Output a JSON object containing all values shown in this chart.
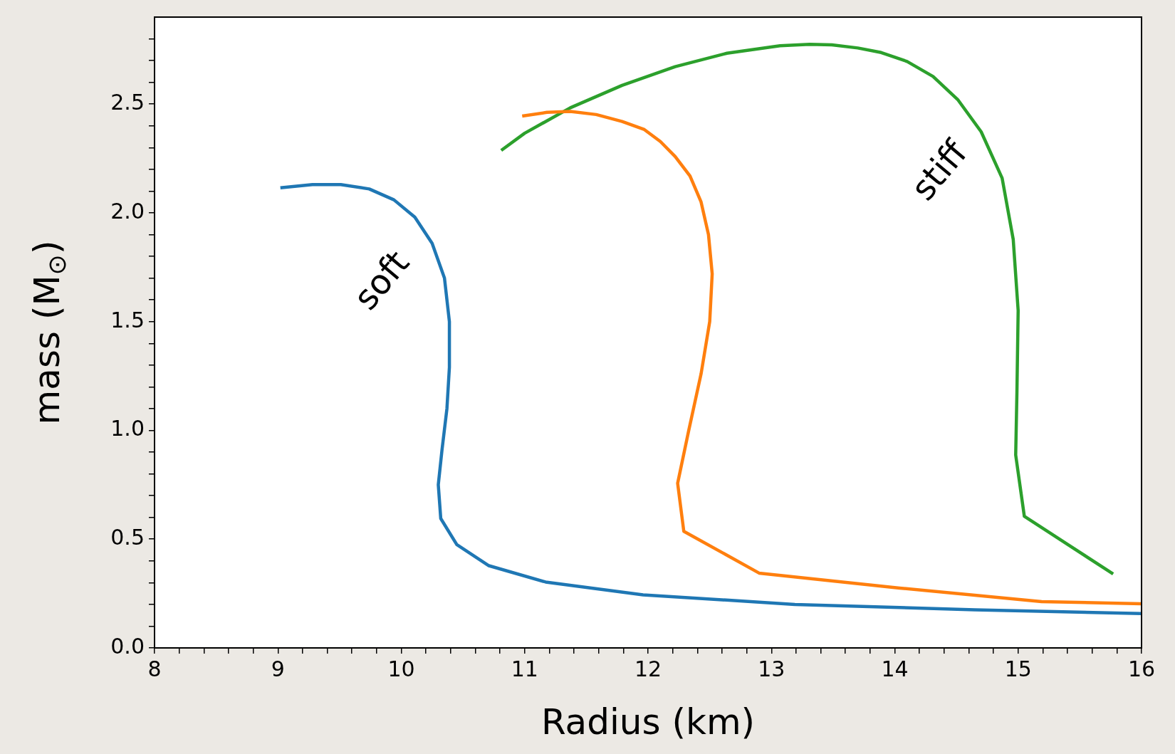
{
  "chart_data": {
    "type": "line",
    "xlabel": "Radius (km)",
    "ylabel": "mass (M$_{⊙}$)",
    "xlim": [
      8,
      16
    ],
    "ylim": [
      0,
      2.9
    ],
    "xticks": [
      8,
      {
        "value": 8.2,
        "label": null
      },
      {
        "value": 8.4,
        "label": null
      },
      {
        "value": 8.6,
        "label": null
      },
      {
        "value": 8.8,
        "label": null
      },
      9,
      {
        "value": 9.2,
        "label": null
      },
      {
        "value": 9.4,
        "label": null
      },
      {
        "value": 9.6,
        "label": null
      },
      {
        "value": 9.8,
        "label": null
      },
      10,
      {
        "value": 10.2,
        "label": null
      },
      {
        "value": 10.4,
        "label": null
      },
      {
        "value": 10.6,
        "label": null
      },
      {
        "value": 10.8,
        "label": null
      },
      11,
      {
        "value": 11.2,
        "label": null
      },
      {
        "value": 11.4,
        "label": null
      },
      {
        "value": 11.6,
        "label": null
      },
      {
        "value": 11.8,
        "label": null
      },
      12,
      {
        "value": 12.2,
        "label": null
      },
      {
        "value": 12.4,
        "label": null
      },
      {
        "value": 12.6,
        "label": null
      },
      {
        "value": 12.8,
        "label": null
      },
      13,
      {
        "value": 13.2,
        "label": null
      },
      {
        "value": 13.4,
        "label": null
      },
      {
        "value": 13.6,
        "label": null
      },
      {
        "value": 13.8,
        "label": null
      },
      14,
      {
        "value": 14.2,
        "label": null
      },
      {
        "value": 14.4,
        "label": null
      },
      {
        "value": 14.6,
        "label": null
      },
      {
        "value": 14.8,
        "label": null
      },
      15,
      {
        "value": 15.2,
        "label": null
      },
      {
        "value": 15.4,
        "label": null
      },
      {
        "value": 15.6,
        "label": null
      },
      {
        "value": 15.8,
        "label": null
      },
      16
    ],
    "yticks": [
      {
        "value": 0,
        "label": "0.0"
      },
      {
        "value": 0.1,
        "label": null
      },
      {
        "value": 0.2,
        "label": null
      },
      {
        "value": 0.3,
        "label": null
      },
      {
        "value": 0.4,
        "label": null
      },
      {
        "value": 0.5,
        "label": "0.5"
      },
      {
        "value": 0.6,
        "label": null
      },
      {
        "value": 0.7,
        "label": null
      },
      {
        "value": 0.8,
        "label": null
      },
      {
        "value": 0.9,
        "label": null
      },
      {
        "value": 1,
        "label": "1.0"
      },
      {
        "value": 1.1,
        "label": null
      },
      {
        "value": 1.2,
        "label": null
      },
      {
        "value": 1.3,
        "label": null
      },
      {
        "value": 1.4,
        "label": null
      },
      {
        "value": 1.5,
        "label": "1.5"
      },
      {
        "value": 1.6,
        "label": null
      },
      {
        "value": 1.7,
        "label": null
      },
      {
        "value": 1.8,
        "label": null
      },
      {
        "value": 1.9,
        "label": null
      },
      {
        "value": 2,
        "label": "2.0"
      },
      {
        "value": 2.1,
        "label": null
      },
      {
        "value": 2.2,
        "label": null
      },
      {
        "value": 2.3,
        "label": null
      },
      {
        "value": 2.4,
        "label": null
      },
      {
        "value": 2.5,
        "label": "2.5"
      },
      {
        "value": 2.6,
        "label": null
      },
      {
        "value": 2.7,
        "label": null
      },
      {
        "value": 2.8,
        "label": null
      }
    ],
    "grid": false,
    "legend": false,
    "marker": "none",
    "line_style": "solid",
    "series": [
      {
        "color": "#1f77b4",
        "x": [
          9.02,
          9.28,
          9.51,
          9.74,
          9.94,
          10.11,
          10.25,
          10.35,
          10.39,
          10.39,
          10.37,
          10.33,
          10.3,
          10.32,
          10.45,
          10.71,
          11.17,
          11.96,
          13.19,
          14.65,
          16.0
        ],
        "values": [
          2.115,
          2.13,
          2.13,
          2.11,
          2.06,
          1.98,
          1.86,
          1.7,
          1.5,
          1.29,
          1.1,
          0.91,
          0.75,
          0.595,
          0.475,
          0.378,
          0.303,
          0.244,
          0.2,
          0.175,
          0.158
        ]
      },
      {
        "color": "#ff7f0e",
        "x": [
          10.98,
          11.18,
          11.37,
          11.58,
          11.79,
          11.97,
          12.1,
          12.22,
          12.34,
          12.43,
          12.49,
          12.52,
          12.5,
          12.43,
          12.33,
          12.24,
          12.29,
          12.9,
          14.04,
          15.19,
          16.0
        ],
        "values": [
          2.445,
          2.462,
          2.466,
          2.452,
          2.42,
          2.383,
          2.328,
          2.259,
          2.17,
          2.05,
          1.9,
          1.72,
          1.5,
          1.26,
          1.0,
          0.757,
          0.536,
          0.344,
          0.275,
          0.213,
          0.203
        ]
      },
      {
        "color": "#2ca02c",
        "x": [
          10.81,
          11.0,
          11.37,
          11.79,
          12.22,
          12.64,
          13.07,
          13.31,
          13.49,
          13.7,
          13.89,
          14.1,
          14.31,
          14.51,
          14.7,
          14.87,
          14.96,
          15.0,
          14.99,
          14.98,
          15.05,
          15.77
        ],
        "values": [
          2.287,
          2.366,
          2.483,
          2.586,
          2.672,
          2.734,
          2.768,
          2.775,
          2.772,
          2.758,
          2.737,
          2.696,
          2.627,
          2.521,
          2.373,
          2.16,
          1.878,
          1.551,
          1.173,
          0.887,
          0.605,
          0.34
        ]
      }
    ],
    "annotations": [
      "soft",
      "stiff"
    ]
  }
}
